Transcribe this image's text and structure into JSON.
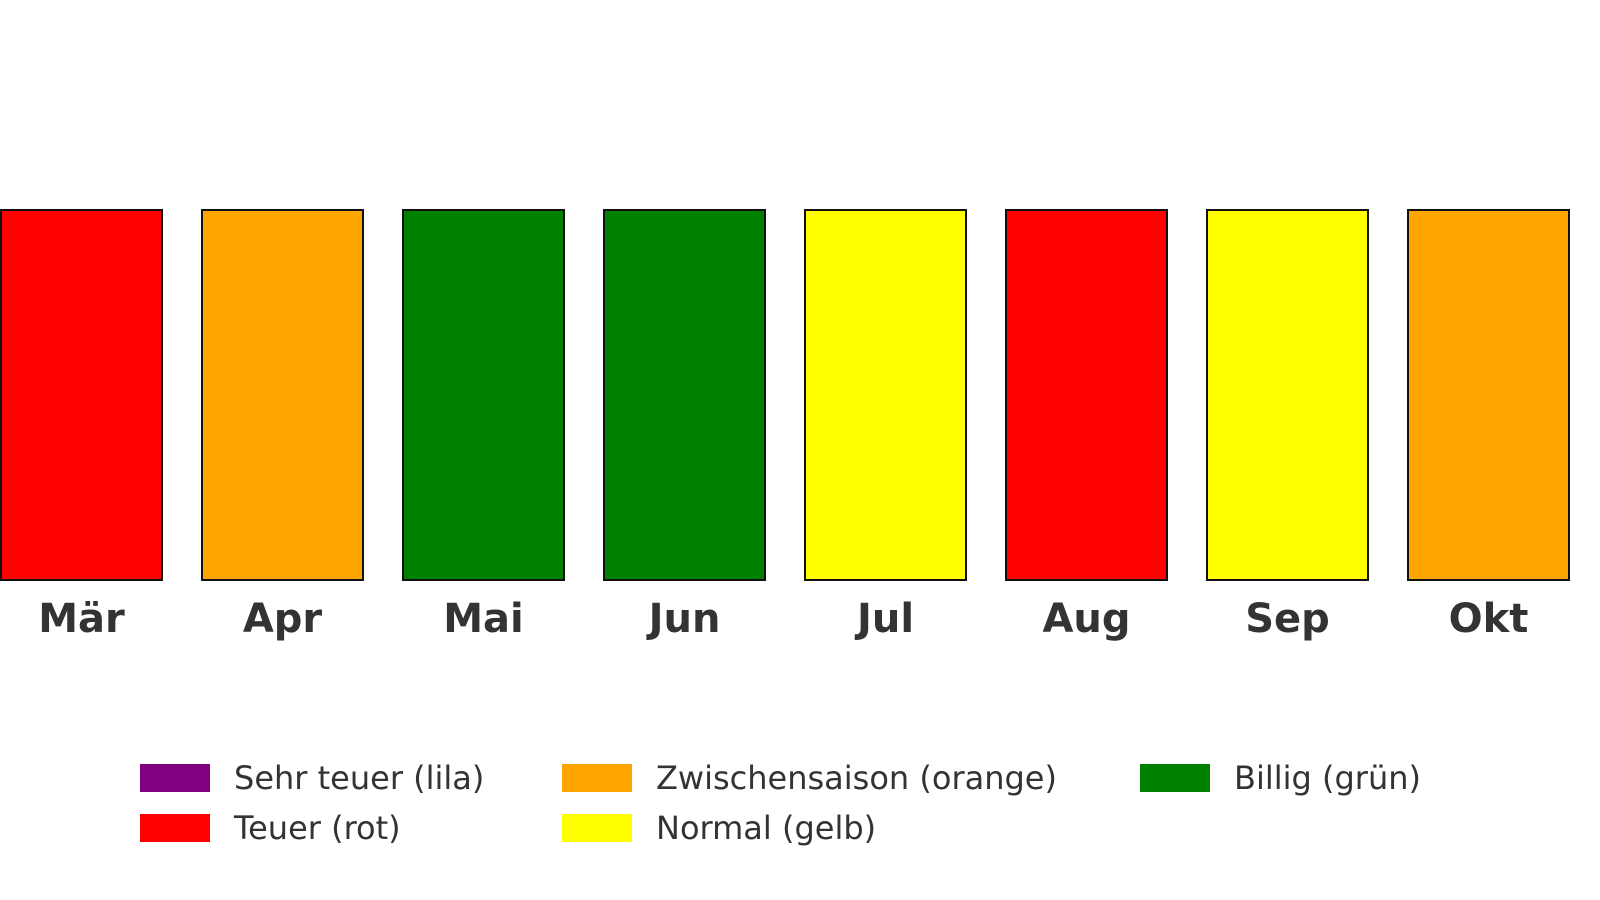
{
  "chart_data": {
    "type": "bar",
    "categories": [
      "Mär",
      "Apr",
      "Mai",
      "Jun",
      "Jul",
      "Aug",
      "Sep",
      "Okt"
    ],
    "category_levels": [
      "teuer",
      "zwischensaison",
      "billig",
      "billig",
      "normal",
      "teuer",
      "normal",
      "zwischensaison"
    ],
    "values": [
      1,
      1,
      1,
      1,
      1,
      1,
      1,
      1
    ],
    "legend": [
      {
        "key": "sehr_teuer",
        "label": "Sehr teuer (lila)",
        "color": "#800080"
      },
      {
        "key": "zwischensaison",
        "label": "Zwischensaison (orange)",
        "color": "#FFA500"
      },
      {
        "key": "billig",
        "label": "Billig (grün)",
        "color": "#008000"
      },
      {
        "key": "teuer",
        "label": "Teuer (rot)",
        "color": "#FF0000"
      },
      {
        "key": "normal",
        "label": "Normal (gelb)",
        "color": "#FFFF00"
      }
    ],
    "legend_placement": "bottom",
    "grid": false
  }
}
